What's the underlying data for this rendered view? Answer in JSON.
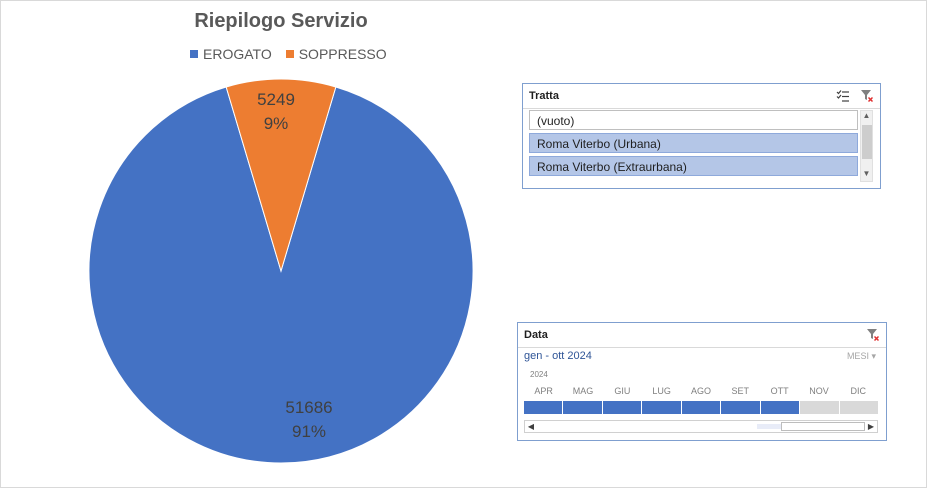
{
  "chart_data": {
    "type": "pie",
    "title": "Riepilogo Servizio",
    "legend_position": "top",
    "series": [
      {
        "name": "EROGATO",
        "value": 51686,
        "percent_label": "91%",
        "color": "#4472c4"
      },
      {
        "name": "SOPPRESSO",
        "value": 5249,
        "percent_label": "9%",
        "color": "#ed7d31"
      }
    ]
  },
  "tratta_slicer": {
    "title": "Tratta",
    "multi_select_icon": "multi-select-icon",
    "clear_filter_icon": "clear-filter-icon",
    "items": [
      {
        "label": "(vuoto)",
        "selected": false
      },
      {
        "label": "Roma Viterbo (Urbana)",
        "selected": true
      },
      {
        "label": "Roma Viterbo (Extraurbana)",
        "selected": true
      }
    ]
  },
  "data_timeline": {
    "title": "Data",
    "clear_filter_icon": "clear-filter-icon",
    "period_label": "gen - ott 2024",
    "level": "MESI",
    "year": "2024",
    "months": [
      "APR",
      "MAG",
      "GIU",
      "LUG",
      "AGO",
      "SET",
      "OTT",
      "NOV",
      "DIC"
    ],
    "selected_months": [
      true,
      true,
      true,
      true,
      true,
      true,
      true,
      false,
      false
    ]
  }
}
